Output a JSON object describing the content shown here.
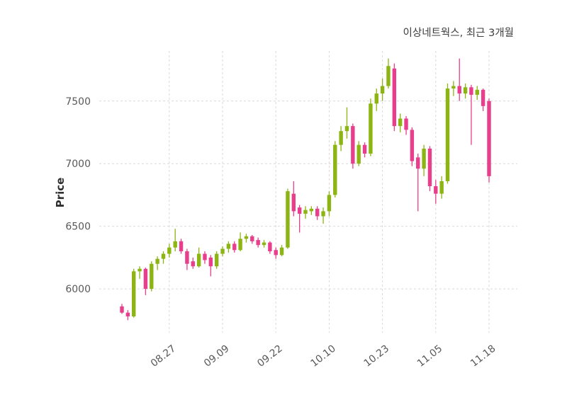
{
  "chart_data": {
    "type": "candlestick",
    "title": "이상네트웍스, 최근 3개월",
    "ylabel": "Price",
    "yticks": [
      6000,
      6500,
      7000,
      7500
    ],
    "ylim": [
      5650,
      7900
    ],
    "xtick_labels": [
      "08.27",
      "09.09",
      "09.22",
      "10.10",
      "10.23",
      "11.05",
      "11.18"
    ],
    "xtick_indices": [
      8,
      17,
      26,
      35,
      44,
      53,
      62
    ],
    "up_color": "#8cb513",
    "down_color": "#e83e8c",
    "grid": true,
    "legend": "none",
    "candles": [
      [
        5860,
        5880,
        5800,
        5810
      ],
      [
        5810,
        5830,
        5750,
        5780
      ],
      [
        5780,
        6160,
        5770,
        6140
      ],
      [
        6140,
        6180,
        6080,
        6160
      ],
      [
        6160,
        6170,
        5950,
        6000
      ],
      [
        6000,
        6220,
        5980,
        6200
      ],
      [
        6200,
        6260,
        6150,
        6240
      ],
      [
        6240,
        6300,
        6200,
        6280
      ],
      [
        6280,
        6360,
        6250,
        6330
      ],
      [
        6330,
        6480,
        6300,
        6380
      ],
      [
        6380,
        6400,
        6280,
        6300
      ],
      [
        6300,
        6320,
        6150,
        6200
      ],
      [
        6220,
        6250,
        6160,
        6180
      ],
      [
        6180,
        6330,
        6170,
        6280
      ],
      [
        6280,
        6300,
        6200,
        6230
      ],
      [
        6250,
        6270,
        6100,
        6180
      ],
      [
        6180,
        6300,
        6160,
        6280
      ],
      [
        6280,
        6340,
        6260,
        6320
      ],
      [
        6320,
        6380,
        6290,
        6360
      ],
      [
        6360,
        6380,
        6290,
        6310
      ],
      [
        6310,
        6450,
        6300,
        6400
      ],
      [
        6400,
        6440,
        6370,
        6420
      ],
      [
        6420,
        6430,
        6360,
        6380
      ],
      [
        6390,
        6410,
        6330,
        6350
      ],
      [
        6350,
        6390,
        6330,
        6370
      ],
      [
        6370,
        6380,
        6280,
        6300
      ],
      [
        6310,
        6330,
        6240,
        6270
      ],
      [
        6270,
        6350,
        6260,
        6330
      ],
      [
        6330,
        6800,
        6320,
        6780
      ],
      [
        6760,
        6860,
        6580,
        6620
      ],
      [
        6650,
        6670,
        6450,
        6600
      ],
      [
        6600,
        6660,
        6560,
        6630
      ],
      [
        6620,
        6660,
        6590,
        6640
      ],
      [
        6640,
        6660,
        6550,
        6580
      ],
      [
        6580,
        6650,
        6520,
        6620
      ],
      [
        6620,
        6780,
        6580,
        6750
      ],
      [
        6750,
        7180,
        6730,
        7150
      ],
      [
        7150,
        7300,
        7100,
        7260
      ],
      [
        7260,
        7450,
        7200,
        7300
      ],
      [
        7300,
        7320,
        6960,
        7000
      ],
      [
        7000,
        7180,
        6980,
        7150
      ],
      [
        7150,
        7170,
        7050,
        7080
      ],
      [
        7080,
        7520,
        7060,
        7480
      ],
      [
        7480,
        7600,
        7420,
        7560
      ],
      [
        7560,
        7680,
        7500,
        7620
      ],
      [
        7620,
        7840,
        7600,
        7780
      ],
      [
        7760,
        7800,
        7260,
        7300
      ],
      [
        7300,
        7400,
        7250,
        7360
      ],
      [
        7360,
        7380,
        7230,
        7270
      ],
      [
        7270,
        7290,
        6980,
        7020
      ],
      [
        7050,
        7080,
        6620,
        6960
      ],
      [
        6960,
        7150,
        6900,
        7120
      ],
      [
        7120,
        7140,
        6780,
        6820
      ],
      [
        6820,
        6870,
        6680,
        6760
      ],
      [
        6760,
        6900,
        6720,
        6860
      ],
      [
        6860,
        7640,
        6840,
        7600
      ],
      [
        7600,
        7660,
        7540,
        7620
      ],
      [
        7620,
        7840,
        7500,
        7560
      ],
      [
        7560,
        7640,
        7520,
        7610
      ],
      [
        7610,
        7630,
        7150,
        7550
      ],
      [
        7550,
        7620,
        7510,
        7590
      ],
      [
        7590,
        7600,
        7420,
        7460
      ],
      [
        7500,
        7520,
        6850,
        6900
      ]
    ]
  }
}
